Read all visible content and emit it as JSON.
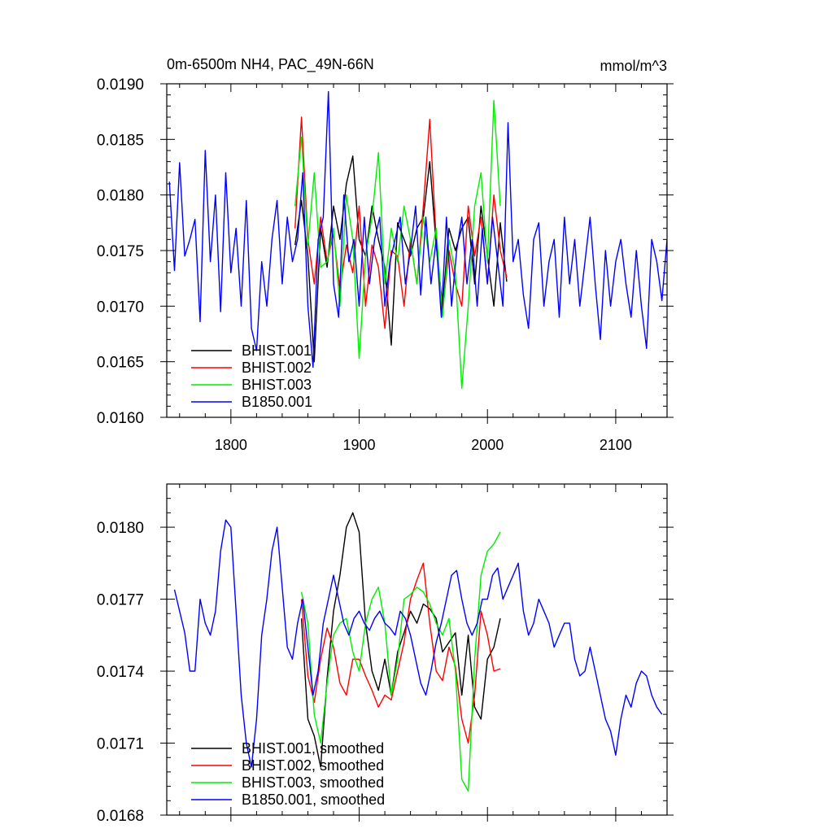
{
  "chart_data": [
    {
      "type": "line",
      "title": "0m-6500m NH4, PAC_49N-66N",
      "units": "mmol/m^3",
      "xlim": [
        1750,
        2140
      ],
      "ylim": [
        0.016,
        0.019
      ],
      "xticks": [
        1800,
        1900,
        2000,
        2100
      ],
      "xtick_labels": [
        "1800",
        "1900",
        "2000",
        "2100"
      ],
      "yticks": [
        0.016,
        0.0165,
        0.017,
        0.0175,
        0.018,
        0.0185,
        0.019
      ],
      "ytick_labels": [
        "0.0160",
        "0.0165",
        "0.0170",
        "0.0175",
        "0.0180",
        "0.0185",
        "0.0190"
      ],
      "legend_position": "bottom-left",
      "series": [
        {
          "name": "BHIST.001",
          "color": "#000000",
          "x": [
            1850,
            1855,
            1860,
            1865,
            1870,
            1875,
            1880,
            1885,
            1890,
            1895,
            1900,
            1905,
            1910,
            1915,
            1920,
            1925,
            1930,
            1935,
            1940,
            1945,
            1950,
            1955,
            1960,
            1965,
            1970,
            1975,
            1980,
            1985,
            1990,
            1995,
            2000,
            2005,
            2010,
            2015
          ],
          "y": [
            0.01755,
            0.01795,
            0.01745,
            0.0165,
            0.0177,
            0.01735,
            0.0179,
            0.0176,
            0.0181,
            0.01835,
            0.0176,
            0.01745,
            0.0179,
            0.0176,
            0.01735,
            0.01665,
            0.01775,
            0.0176,
            0.01745,
            0.0177,
            0.0178,
            0.0183,
            0.01755,
            0.017,
            0.0177,
            0.0175,
            0.0177,
            0.0178,
            0.0172,
            0.0179,
            0.01745,
            0.017,
            0.01775,
            0.01722
          ]
        },
        {
          "name": "BHIST.002",
          "color": "#ff0000",
          "x": [
            1850,
            1855,
            1860,
            1865,
            1870,
            1875,
            1880,
            1885,
            1890,
            1895,
            1900,
            1905,
            1910,
            1915,
            1920,
            1925,
            1930,
            1935,
            1940,
            1945,
            1950,
            1955,
            1960,
            1965,
            1970,
            1975,
            1980,
            1985,
            1990,
            1995,
            2000,
            2005,
            2010,
            2015
          ],
          "y": [
            0.0177,
            0.0187,
            0.0176,
            0.0172,
            0.0178,
            0.0174,
            0.01765,
            0.01715,
            0.01755,
            0.0173,
            0.0179,
            0.017,
            0.01755,
            0.01735,
            0.0168,
            0.0175,
            0.01745,
            0.017,
            0.0176,
            0.0172,
            0.0179,
            0.01868,
            0.0176,
            0.01695,
            0.0175,
            0.0172,
            0.017,
            0.0179,
            0.01745,
            0.0178,
            0.0172,
            0.018,
            0.0175,
            0.01726
          ]
        },
        {
          "name": "BHIST.003",
          "color": "#00ee00",
          "x": [
            1850,
            1855,
            1860,
            1865,
            1870,
            1875,
            1880,
            1885,
            1890,
            1895,
            1900,
            1905,
            1910,
            1915,
            1920,
            1925,
            1930,
            1935,
            1940,
            1945,
            1950,
            1955,
            1960,
            1965,
            1970,
            1975,
            1980,
            1985,
            1990,
            1995,
            2000,
            2005,
            2010
          ],
          "y": [
            0.0179,
            0.01852,
            0.01755,
            0.0182,
            0.01735,
            0.0174,
            0.0177,
            0.017,
            0.018,
            0.0176,
            0.01653,
            0.01745,
            0.0178,
            0.01838,
            0.0172,
            0.0177,
            0.0174,
            0.0179,
            0.0176,
            0.0172,
            0.0178,
            0.0174,
            0.0177,
            0.0169,
            0.0176,
            0.0173,
            0.01626,
            0.017,
            0.0179,
            0.0182,
            0.0174,
            0.01885,
            0.0179
          ]
        },
        {
          "name": "B1850.001",
          "color": "#0000ff",
          "x": [
            1752,
            1756,
            1760,
            1764,
            1768,
            1772,
            1776,
            1780,
            1784,
            1788,
            1792,
            1796,
            1800,
            1804,
            1808,
            1812,
            1816,
            1820,
            1824,
            1828,
            1832,
            1836,
            1840,
            1844,
            1848,
            1852,
            1856,
            1860,
            1864,
            1868,
            1872,
            1876,
            1880,
            1884,
            1888,
            1892,
            1896,
            1900,
            1904,
            1908,
            1912,
            1916,
            1920,
            1924,
            1928,
            1932,
            1936,
            1940,
            1944,
            1948,
            1952,
            1956,
            1960,
            1964,
            1968,
            1972,
            1976,
            1980,
            1984,
            1988,
            1992,
            1996,
            2000,
            2004,
            2008,
            2012,
            2016,
            2020,
            2024,
            2028,
            2032,
            2036,
            2040,
            2044,
            2048,
            2052,
            2056,
            2060,
            2064,
            2068,
            2072,
            2076,
            2080,
            2084,
            2088,
            2092,
            2096,
            2100,
            2104,
            2108,
            2112,
            2116,
            2120,
            2124,
            2128,
            2132,
            2136,
            2140
          ],
          "y": [
            0.01812,
            0.01732,
            0.01829,
            0.01745,
            0.0176,
            0.01778,
            0.01686,
            0.0184,
            0.0174,
            0.018,
            0.01695,
            0.0182,
            0.0173,
            0.0177,
            0.017,
            0.01795,
            0.0168,
            0.0166,
            0.0174,
            0.017,
            0.0176,
            0.01795,
            0.0172,
            0.0178,
            0.0174,
            0.0176,
            0.0182,
            0.017,
            0.01645,
            0.0176,
            0.0178,
            0.01893,
            0.0172,
            0.0169,
            0.018,
            0.0174,
            0.0176,
            0.017,
            0.0178,
            0.0172,
            0.0176,
            0.0178,
            0.017,
            0.0174,
            0.0176,
            0.0178,
            0.0172,
            0.0175,
            0.0179,
            0.0171,
            0.0178,
            0.0172,
            0.0176,
            0.0169,
            0.0178,
            0.017,
            0.0175,
            0.0178,
            0.0172,
            0.0176,
            0.017,
            0.0177,
            0.0172,
            0.0178,
            0.0174,
            0.017,
            0.01865,
            0.0174,
            0.0176,
            0.0171,
            0.0168,
            0.0176,
            0.01775,
            0.017,
            0.0174,
            0.0176,
            0.0169,
            0.0178,
            0.0172,
            0.0176,
            0.017,
            0.0174,
            0.0178,
            0.0172,
            0.0167,
            0.0175,
            0.017,
            0.0174,
            0.0176,
            0.0172,
            0.0169,
            0.0175,
            0.017,
            0.01662,
            0.0176,
            0.0174,
            0.01705,
            0.0176
          ]
        }
      ]
    },
    {
      "type": "line",
      "title": "",
      "xlim": [
        1750,
        2140
      ],
      "ylim": [
        0.0168,
        0.01818
      ],
      "xticks": [
        1800,
        1900,
        2000,
        2100
      ],
      "yticks": [
        0.0168,
        0.0171,
        0.0174,
        0.0177,
        0.018
      ],
      "ytick_labels": [
        "0.0168",
        "0.0171",
        "0.0174",
        "0.0177",
        "0.0180"
      ],
      "legend_position": "bottom-left",
      "series": [
        {
          "name": "BHIST.001, smoothed",
          "color": "#000000",
          "x": [
            1855,
            1860,
            1865,
            1870,
            1875,
            1880,
            1885,
            1890,
            1895,
            1900,
            1905,
            1910,
            1915,
            1920,
            1925,
            1930,
            1935,
            1940,
            1945,
            1950,
            1955,
            1960,
            1965,
            1970,
            1975,
            1980,
            1985,
            1990,
            1995,
            2000,
            2005,
            2010
          ],
          "y": [
            0.01762,
            0.0172,
            0.01713,
            0.017,
            0.01737,
            0.01765,
            0.0178,
            0.018,
            0.01806,
            0.01798,
            0.0176,
            0.0174,
            0.01732,
            0.01745,
            0.0173,
            0.01748,
            0.01756,
            0.01765,
            0.0176,
            0.01768,
            0.01766,
            0.01762,
            0.01748,
            0.01752,
            0.01756,
            0.0173,
            0.01755,
            0.01725,
            0.0172,
            0.01745,
            0.0175,
            0.01762
          ]
        },
        {
          "name": "BHIST.002, smoothed",
          "color": "#ff0000",
          "x": [
            1855,
            1860,
            1865,
            1870,
            1875,
            1880,
            1885,
            1890,
            1895,
            1900,
            1905,
            1910,
            1915,
            1920,
            1925,
            1930,
            1935,
            1940,
            1945,
            1950,
            1955,
            1960,
            1965,
            1970,
            1975,
            1980,
            1985,
            1990,
            1995,
            2000,
            2005,
            2010
          ],
          "y": [
            0.0177,
            0.01738,
            0.01727,
            0.01745,
            0.01758,
            0.0175,
            0.01735,
            0.0173,
            0.01745,
            0.01745,
            0.01738,
            0.01732,
            0.01725,
            0.0173,
            0.01728,
            0.0174,
            0.01752,
            0.0177,
            0.01778,
            0.01785,
            0.0176,
            0.0174,
            0.01736,
            0.0175,
            0.01742,
            0.0172,
            0.0171,
            0.0173,
            0.01765,
            0.01755,
            0.0174,
            0.01741
          ]
        },
        {
          "name": "BHIST.003, smoothed",
          "color": "#00ee00",
          "x": [
            1855,
            1860,
            1865,
            1870,
            1875,
            1880,
            1885,
            1890,
            1895,
            1900,
            1905,
            1910,
            1915,
            1920,
            1925,
            1930,
            1935,
            1940,
            1945,
            1950,
            1955,
            1960,
            1965,
            1970,
            1975,
            1980,
            1985,
            1990,
            1995,
            2000,
            2005,
            2010
          ],
          "y": [
            0.01773,
            0.0176,
            0.01722,
            0.0171,
            0.01735,
            0.01755,
            0.0176,
            0.01762,
            0.01748,
            0.0174,
            0.0176,
            0.0177,
            0.01775,
            0.0176,
            0.0173,
            0.01745,
            0.0177,
            0.01772,
            0.01775,
            0.01773,
            0.01768,
            0.0176,
            0.01755,
            0.01762,
            0.0174,
            0.01695,
            0.0169,
            0.01745,
            0.0178,
            0.0179,
            0.01793,
            0.01798
          ]
        },
        {
          "name": "B1850.001, smoothed",
          "color": "#0000ff",
          "x": [
            1756,
            1760,
            1764,
            1768,
            1772,
            1776,
            1780,
            1784,
            1788,
            1792,
            1796,
            1800,
            1804,
            1808,
            1812,
            1816,
            1820,
            1824,
            1828,
            1832,
            1836,
            1840,
            1844,
            1848,
            1852,
            1856,
            1860,
            1864,
            1868,
            1872,
            1876,
            1880,
            1884,
            1888,
            1892,
            1896,
            1900,
            1904,
            1908,
            1912,
            1916,
            1920,
            1924,
            1928,
            1932,
            1936,
            1940,
            1944,
            1948,
            1952,
            1956,
            1960,
            1964,
            1968,
            1972,
            1976,
            1980,
            1984,
            1988,
            1992,
            1996,
            2000,
            2004,
            2008,
            2012,
            2016,
            2020,
            2024,
            2028,
            2032,
            2036,
            2040,
            2044,
            2048,
            2052,
            2056,
            2060,
            2064,
            2068,
            2072,
            2076,
            2080,
            2084,
            2088,
            2092,
            2096,
            2100,
            2104,
            2108,
            2112,
            2116,
            2120,
            2124,
            2128,
            2132,
            2136
          ],
          "y": [
            0.01774,
            0.01765,
            0.01756,
            0.0174,
            0.0174,
            0.0177,
            0.0176,
            0.01755,
            0.01765,
            0.0179,
            0.01803,
            0.018,
            0.01765,
            0.0173,
            0.0171,
            0.017,
            0.0172,
            0.01755,
            0.0177,
            0.0179,
            0.018,
            0.01775,
            0.0175,
            0.01745,
            0.0176,
            0.0177,
            0.0175,
            0.0173,
            0.0174,
            0.0176,
            0.0177,
            0.0178,
            0.0177,
            0.0176,
            0.01755,
            0.01762,
            0.01765,
            0.0176,
            0.01757,
            0.01762,
            0.01765,
            0.0176,
            0.01758,
            0.01755,
            0.01765,
            0.01762,
            0.01755,
            0.01745,
            0.01735,
            0.0173,
            0.0174,
            0.01752,
            0.0176,
            0.0177,
            0.0178,
            0.01782,
            0.0177,
            0.0176,
            0.01755,
            0.0176,
            0.0177,
            0.0177,
            0.0178,
            0.01783,
            0.0177,
            0.01775,
            0.0178,
            0.01785,
            0.01765,
            0.01755,
            0.0176,
            0.0177,
            0.01765,
            0.0176,
            0.0175,
            0.01755,
            0.0176,
            0.0176,
            0.01745,
            0.01738,
            0.0174,
            0.0175,
            0.0174,
            0.0173,
            0.0172,
            0.01715,
            0.01705,
            0.0172,
            0.0173,
            0.01725,
            0.01735,
            0.0174,
            0.01738,
            0.0173,
            0.01725,
            0.01722
          ]
        }
      ]
    }
  ]
}
